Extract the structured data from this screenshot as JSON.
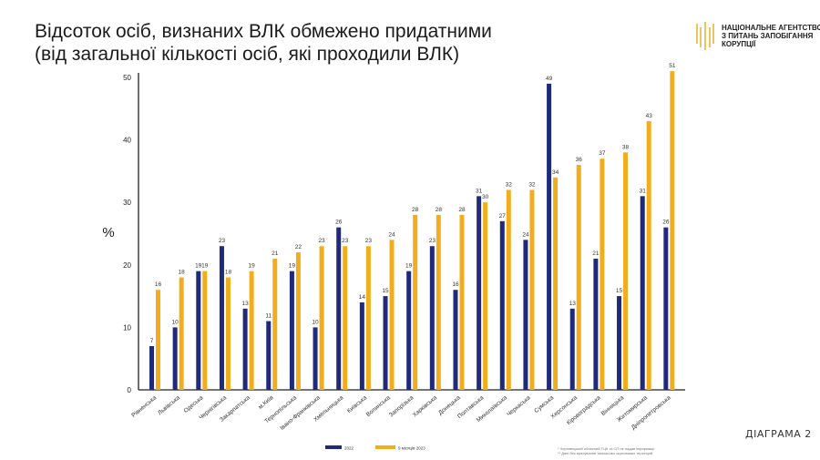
{
  "title_lines": [
    "Відсоток осіб, визнаних ВЛК обмежено придатними",
    "(від загальної кількості осіб, які проходили ВЛК)"
  ],
  "logo": {
    "lines": [
      "НАЦІОНАЛЬНЕ АГЕНТСТВО",
      "З ПИТАНЬ ЗАПОБІГАННЯ",
      "КОРУПЦІЇ"
    ]
  },
  "diagram_label": "ДІАГРАМА 2",
  "footnotes": [
    "* Чернівецький обласний ТЦК та СП не надав інформації",
    "** Дані без врахування тимчасово окупованих територій"
  ],
  "colors": {
    "series_2022": "#1f2a7a",
    "series_2023": "#f2ad1d",
    "axis": "#222222"
  },
  "chart_data": {
    "type": "bar",
    "title": "Відсоток осіб, визнаних ВЛК обмежено придатними (від загальної кількості осіб, які проходили ВЛК)",
    "xlabel": "",
    "ylabel": "%",
    "ylim": [
      0,
      50
    ],
    "yticks": [
      0,
      10,
      20,
      30,
      40,
      50
    ],
    "grid": false,
    "legend_position": "bottom",
    "categories": [
      "Рівненська",
      "Львівська",
      "Одеська",
      "Чернігівська",
      "Закарпатська",
      "м.Київ",
      "Тернопільська",
      "Івано-Франківська",
      "Хмельницька",
      "Київська",
      "Волинська",
      "Запорізька",
      "Харківська",
      "Донецька",
      "Полтавська",
      "Миколаївська",
      "Черкаська",
      "Сумська",
      "Херсонська",
      "Кіровоградська",
      "Вінницька",
      "Житомирська",
      "Дніпропетровська"
    ],
    "series": [
      {
        "name": "2022",
        "values": [
          7,
          10,
          19,
          23,
          13,
          11,
          19,
          10,
          26,
          14,
          15,
          19,
          23,
          16,
          31,
          27,
          24,
          49,
          13,
          21,
          15,
          31,
          26
        ]
      },
      {
        "name": "9 місяців 2023",
        "values": [
          16,
          18,
          19,
          18,
          19,
          21,
          22,
          23,
          23,
          23,
          24,
          28,
          28,
          28,
          30,
          32,
          32,
          34,
          36,
          37,
          38,
          43,
          51
        ]
      }
    ]
  }
}
